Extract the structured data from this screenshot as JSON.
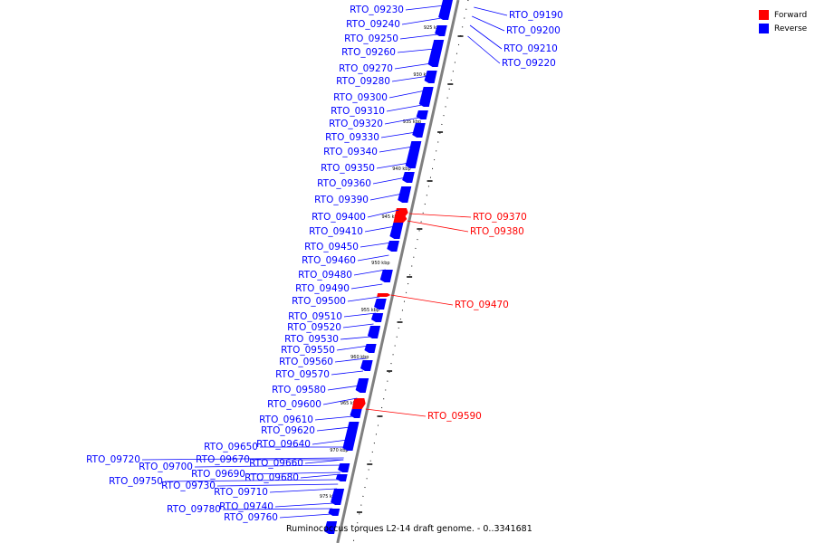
{
  "caption": "Ruminococcus torques L2-14 draft genome. - 0..3341681",
  "legend": [
    {
      "label": "Forward",
      "color": "#ff0000"
    },
    {
      "label": "Reverse",
      "color": "#0000ff"
    }
  ],
  "colors": {
    "forward": "#ff0000",
    "reverse": "#0000ff",
    "backbone": "#808080"
  },
  "tick_labels": [
    "925 kbp",
    "930 kbp",
    "935 kbp",
    "940 kbp",
    "945 kbp",
    "950 kbp",
    "955 kbp",
    "960 kbp",
    "965 kbp",
    "970 kbp",
    "975 kbp"
  ],
  "genes_reverse": [
    "RTO_09230",
    "RTO_09240",
    "RTO_09250",
    "RTO_09260",
    "RTO_09270",
    "RTO_09280",
    "RTO_09300",
    "RTO_09310",
    "RTO_09320",
    "RTO_09330",
    "RTO_09340",
    "RTO_09350",
    "RTO_09360",
    "RTO_09390",
    "RTO_09400",
    "RTO_09410",
    "RTO_09450",
    "RTO_09460",
    "RTO_09480",
    "RTO_09490",
    "RTO_09500",
    "RTO_09510",
    "RTO_09520",
    "RTO_09530",
    "RTO_09550",
    "RTO_09560",
    "RTO_09570",
    "RTO_09580",
    "RTO_09600",
    "RTO_09610",
    "RTO_09620",
    "RTO_09640",
    "RTO_09650",
    "RTO_09660",
    "RTO_09670",
    "RTO_09680",
    "RTO_09690",
    "RTO_09700",
    "RTO_09710",
    "RTO_09720",
    "RTO_09730",
    "RTO_09740",
    "RTO_09750",
    "RTO_09760",
    "RTO_09780"
  ],
  "genes_forward": [
    "RTO_09370",
    "RTO_09380",
    "RTO_09470",
    "RTO_09590"
  ],
  "genes_right_top": [
    "RTO_09190",
    "RTO_09200",
    "RTO_09210",
    "RTO_09220"
  ]
}
